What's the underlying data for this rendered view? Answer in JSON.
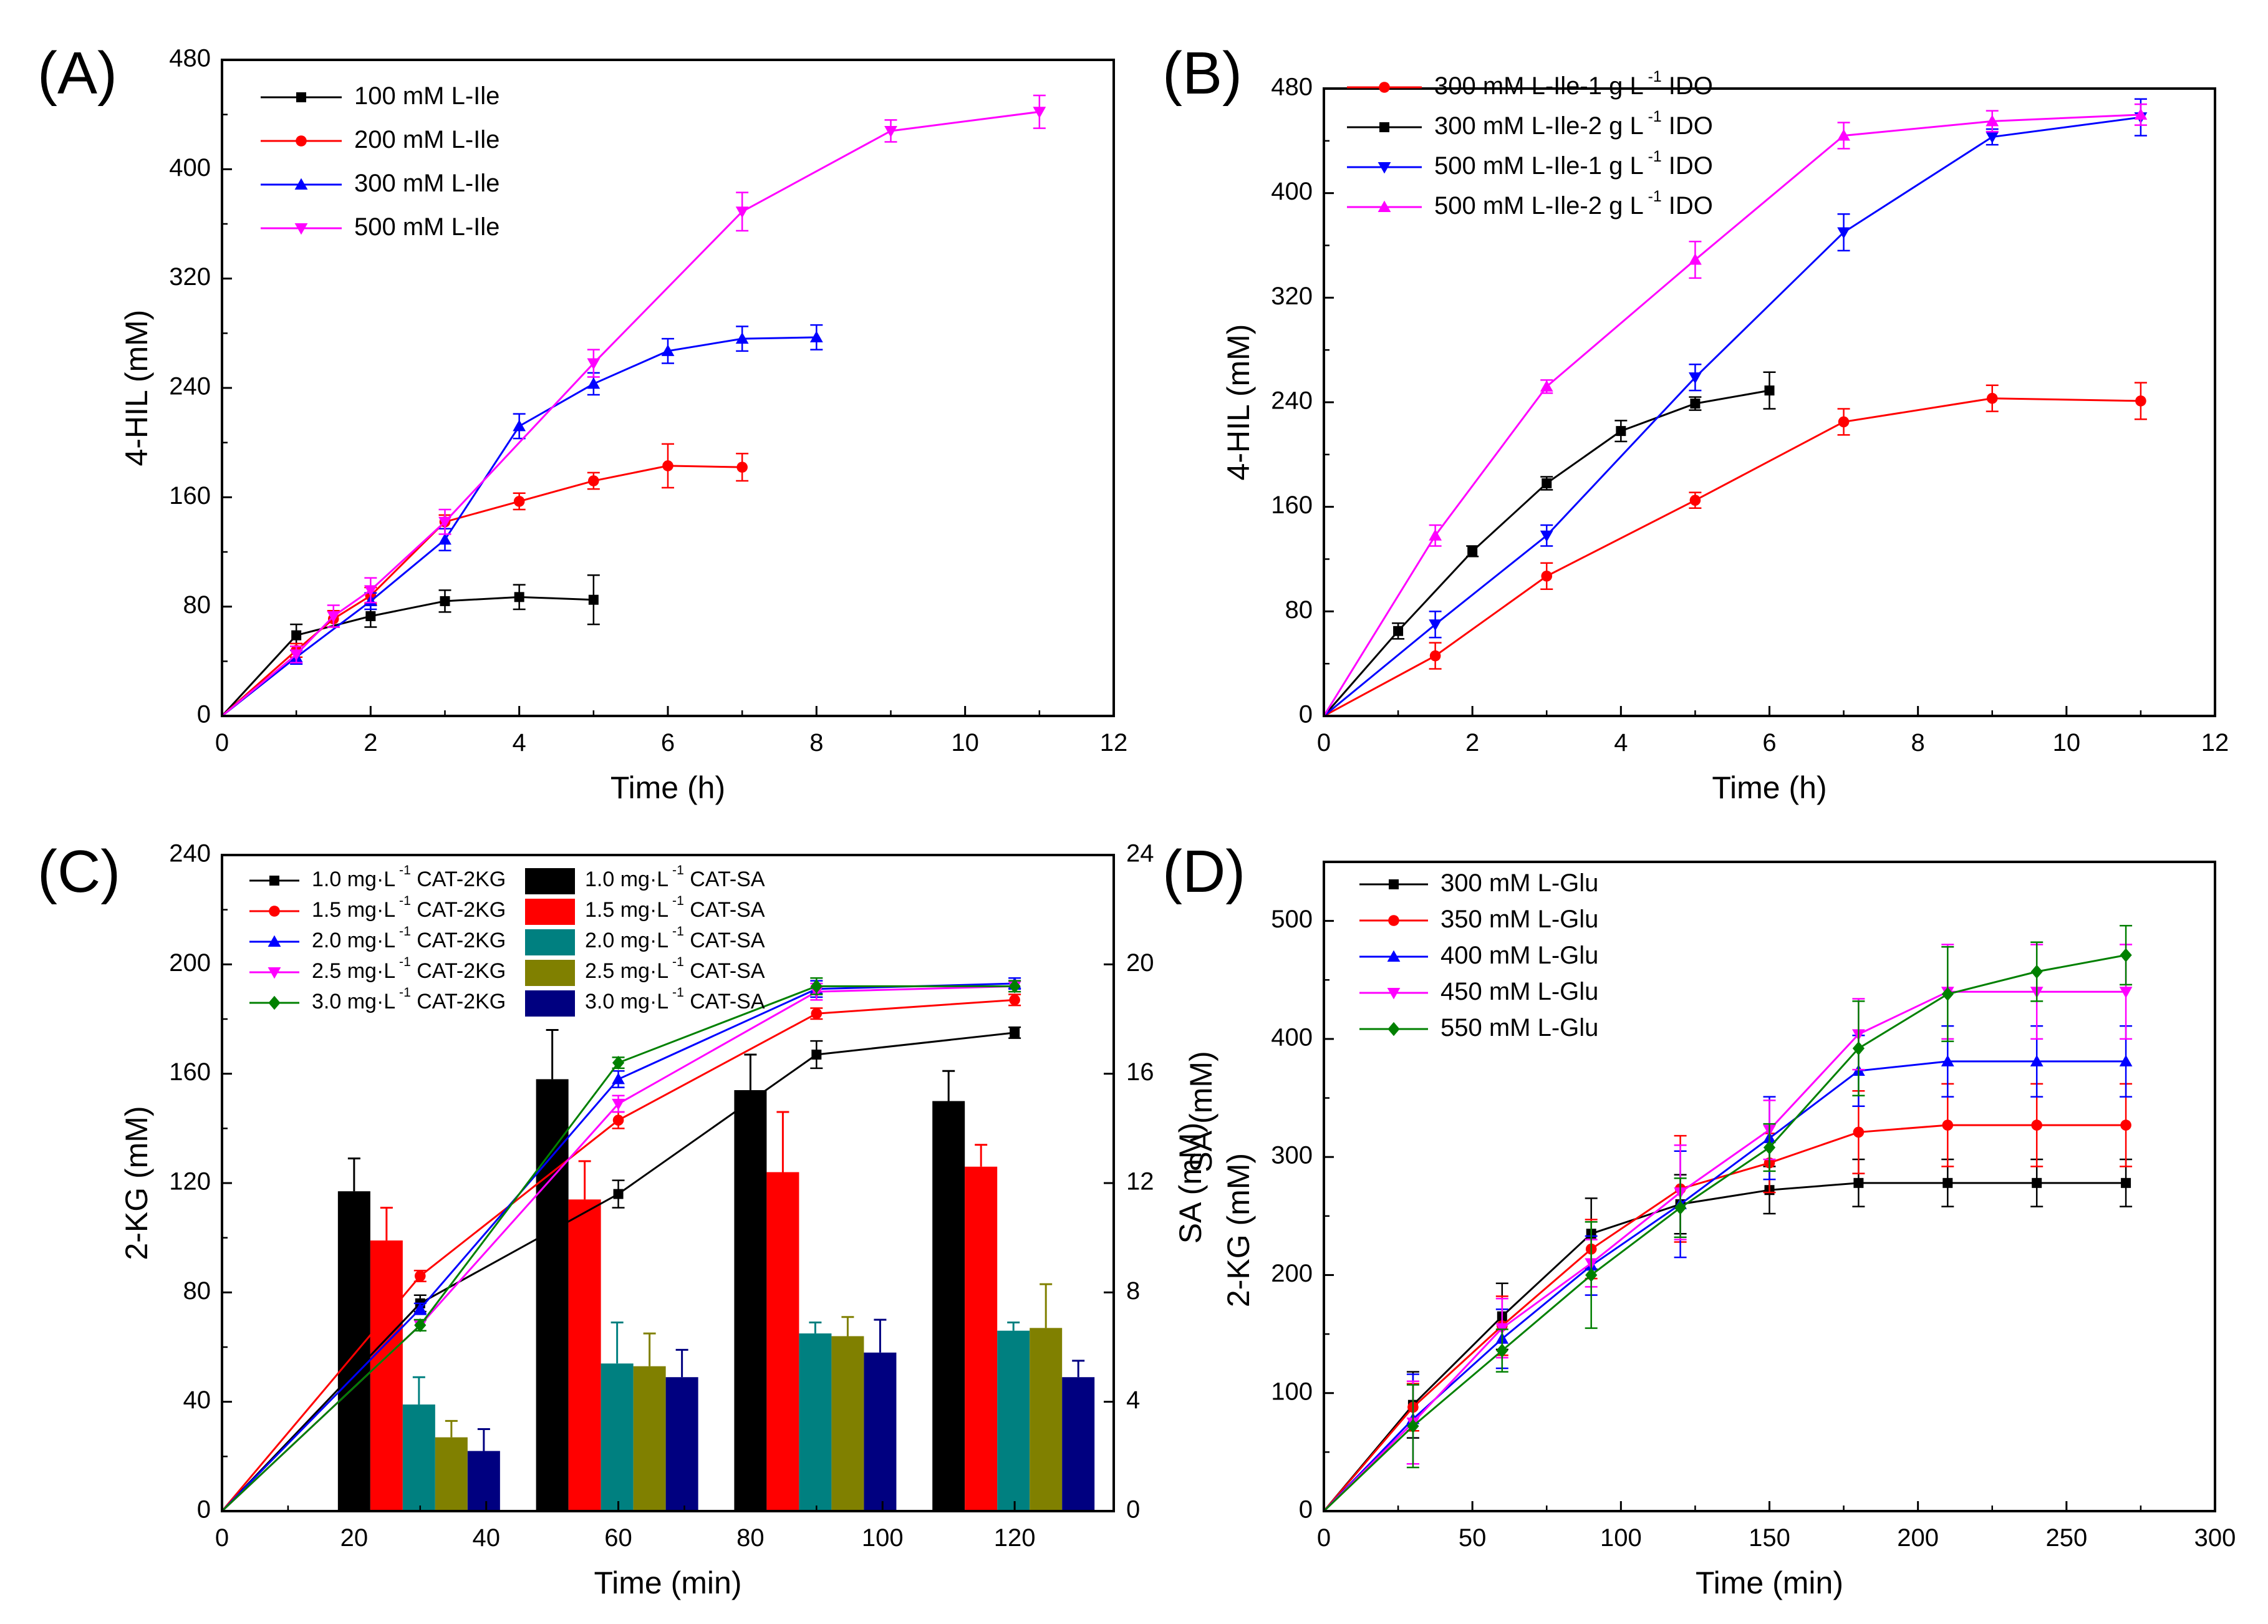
{
  "chart_data": [
    {
      "panel": "(A)",
      "type": "line",
      "xlabel": "Time (h)",
      "ylabel": "4-HIL (mM)",
      "xlim": [
        0,
        12
      ],
      "ylim": [
        0,
        480
      ],
      "xticks": [
        0,
        2,
        4,
        6,
        8,
        10,
        12
      ],
      "yticks": [
        0,
        80,
        160,
        240,
        320,
        400,
        480
      ],
      "legend_position": "top-left",
      "series": [
        {
          "name": "100 mM L-Ile",
          "color": "#000000",
          "marker": "square",
          "x": [
            0,
            1,
            2,
            3,
            4,
            5
          ],
          "y": [
            0,
            59,
            73,
            84,
            87,
            85
          ],
          "err": [
            0,
            8,
            8,
            8,
            9,
            18
          ]
        },
        {
          "name": "200 mM L-Ile",
          "color": "#ff0000",
          "marker": "circle",
          "x": [
            0,
            1,
            1.5,
            2,
            3,
            4,
            5,
            6,
            7
          ],
          "y": [
            0,
            48,
            71,
            88,
            142,
            157,
            172,
            183,
            182
          ],
          "err": [
            0,
            5,
            6,
            6,
            5,
            6,
            6,
            16,
            10
          ]
        },
        {
          "name": "300 mM L-Ile",
          "color": "#0000ff",
          "marker": "triangle-up",
          "x": [
            0,
            1,
            2,
            3,
            4,
            5,
            6,
            7,
            8
          ],
          "y": [
            0,
            43,
            84,
            129,
            212,
            243,
            267,
            276,
            277
          ],
          "err": [
            0,
            5,
            6,
            8,
            9,
            8,
            9,
            9,
            9
          ]
        },
        {
          "name": "500 mM L-Ile",
          "color": "#ff00ff",
          "marker": "triangle-down",
          "x": [
            0,
            1,
            1.5,
            2,
            3,
            5,
            7,
            9,
            11
          ],
          "y": [
            0,
            45,
            73,
            92,
            142,
            258,
            369,
            428,
            442
          ],
          "err": [
            0,
            6,
            8,
            9,
            9,
            10,
            14,
            8,
            12
          ]
        }
      ]
    },
    {
      "panel": "(B)",
      "type": "line",
      "xlabel": "Time (h)",
      "ylabel": "4-HIL (mM)",
      "xlim": [
        0,
        12
      ],
      "ylim": [
        0,
        480
      ],
      "xticks": [
        0,
        2,
        4,
        6,
        8,
        10,
        12
      ],
      "yticks": [
        0,
        80,
        160,
        240,
        320,
        400,
        480
      ],
      "legend_position": "top-left",
      "series": [
        {
          "name": "300 mM L-Ile-1 g L",
          "sup": "-1",
          "suffix": " IDO",
          "color": "#ff0000",
          "marker": "circle",
          "x": [
            0,
            1.5,
            3,
            5,
            7,
            9,
            11
          ],
          "y": [
            0,
            46,
            107,
            165,
            225,
            243,
            241
          ],
          "err": [
            0,
            10,
            10,
            6,
            10,
            10,
            14
          ]
        },
        {
          "name": "300 mM L-Ile-2 g L",
          "sup": "-1",
          "suffix": " IDO",
          "color": "#000000",
          "marker": "square",
          "x": [
            0,
            1,
            2,
            3,
            4,
            5,
            6
          ],
          "y": [
            0,
            65,
            126,
            178,
            218,
            239,
            249
          ],
          "err": [
            0,
            6,
            4,
            5,
            8,
            5,
            14
          ]
        },
        {
          "name": "500 mM L-Ile-1 g L",
          "sup": "-1",
          "suffix": " IDO",
          "color": "#0000ff",
          "marker": "triangle-down",
          "x": [
            0,
            1.5,
            3,
            5,
            7,
            9,
            11
          ],
          "y": [
            0,
            70,
            138,
            259,
            370,
            443,
            458
          ],
          "err": [
            0,
            10,
            8,
            10,
            14,
            6,
            14
          ]
        },
        {
          "name": "500 mM L-Ile-2 g L",
          "sup": "-1",
          "suffix": " IDO",
          "color": "#ff00ff",
          "marker": "triangle-up",
          "x": [
            0,
            1.5,
            3,
            5,
            7,
            9,
            11
          ],
          "y": [
            0,
            138,
            252,
            349,
            444,
            455,
            460
          ],
          "err": [
            0,
            8,
            5,
            14,
            10,
            8,
            8
          ]
        }
      ]
    },
    {
      "panel": "(C)",
      "type": "bar+line",
      "xlabel": "Time (min)",
      "ylabel": "2-KG (mM)",
      "y2label": "SA (mM)",
      "xlim": [
        0,
        135
      ],
      "ylim": [
        0,
        240
      ],
      "y2lim": [
        0,
        24
      ],
      "xticks": [
        0,
        20,
        40,
        60,
        80,
        100,
        120
      ],
      "yticks": [
        0,
        40,
        80,
        120,
        160,
        200,
        240
      ],
      "y2ticks": [
        0,
        4,
        8,
        12,
        16,
        20,
        24
      ],
      "legend_position": "top-left",
      "bar_groups": [
        20,
        50,
        80,
        110
      ],
      "bars": [
        {
          "name": "1.0 mg·L",
          "sup": "-1",
          "suffix": " CAT-SA",
          "color": "#000000",
          "values": [
            11.7,
            15.8,
            15.4,
            15.0
          ],
          "err": [
            1.2,
            1.8,
            1.3,
            1.1
          ]
        },
        {
          "name": "1.5 mg·L",
          "sup": "-1",
          "suffix": " CAT-SA",
          "color": "#ff0000",
          "values": [
            9.9,
            11.4,
            12.4,
            12.6
          ],
          "err": [
            1.2,
            1.4,
            2.2,
            0.8
          ]
        },
        {
          "name": "2.0 mg·L",
          "sup": "-1",
          "suffix": " CAT-SA",
          "color": "#008080",
          "values": [
            3.9,
            5.4,
            6.5,
            6.6
          ],
          "err": [
            1.0,
            1.5,
            0.4,
            0.3
          ]
        },
        {
          "name": "2.5 mg·L",
          "sup": "-1",
          "suffix": " CAT-SA",
          "color": "#808000",
          "values": [
            2.7,
            5.3,
            6.4,
            6.7
          ],
          "err": [
            0.6,
            1.2,
            0.7,
            1.6
          ]
        },
        {
          "name": "3.0 mg·L",
          "sup": "-1",
          "suffix": " CAT-SA",
          "color": "#000080",
          "values": [
            2.2,
            4.9,
            5.8,
            4.9
          ],
          "err": [
            0.8,
            1.0,
            1.2,
            0.6
          ]
        }
      ],
      "series": [
        {
          "name": "1.0 mg·L",
          "sup": "-1",
          "suffix": " CAT-2KG",
          "color": "#000000",
          "marker": "square",
          "x": [
            0,
            30,
            60,
            90,
            120
          ],
          "y": [
            0,
            76,
            116,
            167,
            175
          ],
          "err": [
            0,
            3,
            5,
            5,
            2
          ]
        },
        {
          "name": "1.5 mg·L",
          "sup": "-1",
          "suffix": " CAT-2KG",
          "color": "#ff0000",
          "marker": "circle",
          "x": [
            0,
            30,
            60,
            90,
            120
          ],
          "y": [
            0,
            86,
            143,
            182,
            187
          ],
          "err": [
            0,
            2,
            3,
            2,
            2
          ]
        },
        {
          "name": "2.0 mg·L",
          "sup": "-1",
          "suffix": " CAT-2KG",
          "color": "#0000ff",
          "marker": "triangle-up",
          "x": [
            0,
            30,
            60,
            90,
            120
          ],
          "y": [
            0,
            74,
            158,
            191,
            193
          ],
          "err": [
            0,
            2,
            3,
            3,
            2
          ]
        },
        {
          "name": "2.5 mg·L",
          "sup": "-1",
          "suffix": " CAT-2KG",
          "color": "#ff00ff",
          "marker": "triangle-down",
          "x": [
            0,
            30,
            60,
            90,
            120
          ],
          "y": [
            0,
            68,
            149,
            190,
            192
          ],
          "err": [
            0,
            2,
            3,
            3,
            2
          ]
        },
        {
          "name": "3.0 mg·L",
          "sup": "-1",
          "suffix": " CAT-2KG",
          "color": "#008000",
          "marker": "diamond",
          "x": [
            0,
            30,
            60,
            90,
            120
          ],
          "y": [
            0,
            68,
            164,
            192,
            192
          ],
          "err": [
            0,
            2,
            2,
            3,
            2
          ]
        }
      ]
    },
    {
      "panel": "(D)",
      "type": "line",
      "xlabel": "Time (min)",
      "ylabel": "2-KG (mM)",
      "ylabel_top": "SA (mM)",
      "xlim": [
        0,
        300
      ],
      "ylim": [
        0,
        550
      ],
      "xticks": [
        0,
        50,
        100,
        150,
        200,
        250,
        300
      ],
      "yticks": [
        0,
        100,
        200,
        300,
        400,
        500
      ],
      "legend_position": "top-left",
      "series": [
        {
          "name": "300 mM L-Glu",
          "color": "#000000",
          "marker": "square",
          "x": [
            0,
            30,
            60,
            90,
            120,
            150,
            180,
            210,
            240,
            270
          ],
          "y": [
            0,
            90,
            165,
            235,
            260,
            272,
            278,
            278,
            278,
            278
          ],
          "err": [
            0,
            28,
            28,
            30,
            25,
            20,
            20,
            20,
            20,
            20
          ]
        },
        {
          "name": "350 mM L-Glu",
          "color": "#ff0000",
          "marker": "circle",
          "x": [
            0,
            30,
            60,
            90,
            120,
            150,
            180,
            210,
            240,
            270
          ],
          "y": [
            0,
            88,
            157,
            222,
            273,
            295,
            321,
            327,
            327,
            327
          ],
          "err": [
            0,
            20,
            25,
            25,
            45,
            25,
            35,
            35,
            35,
            35
          ]
        },
        {
          "name": "400 mM L-Glu",
          "color": "#0000ff",
          "marker": "triangle-up",
          "x": [
            0,
            30,
            60,
            90,
            120,
            150,
            180,
            210,
            240,
            270
          ],
          "y": [
            0,
            78,
            146,
            208,
            260,
            316,
            373,
            381,
            381,
            381
          ],
          "err": [
            0,
            38,
            25,
            25,
            45,
            35,
            30,
            30,
            30,
            30
          ]
        },
        {
          "name": "450 mM L-Glu",
          "color": "#ff00ff",
          "marker": "triangle-down",
          "x": [
            0,
            30,
            60,
            90,
            120,
            150,
            180,
            210,
            240,
            270
          ],
          "y": [
            0,
            75,
            155,
            210,
            270,
            323,
            404,
            440,
            440,
            440
          ],
          "err": [
            0,
            35,
            25,
            20,
            40,
            25,
            30,
            40,
            40,
            40
          ]
        },
        {
          "name": "550 mM L-Glu",
          "color": "#008000",
          "marker": "diamond",
          "x": [
            0,
            30,
            60,
            90,
            120,
            150,
            180,
            210,
            240,
            270
          ],
          "y": [
            0,
            72,
            136,
            200,
            257,
            308,
            392,
            438,
            457,
            471
          ],
          "err": [
            0,
            35,
            18,
            45,
            25,
            20,
            40,
            40,
            25,
            25
          ]
        }
      ]
    }
  ]
}
